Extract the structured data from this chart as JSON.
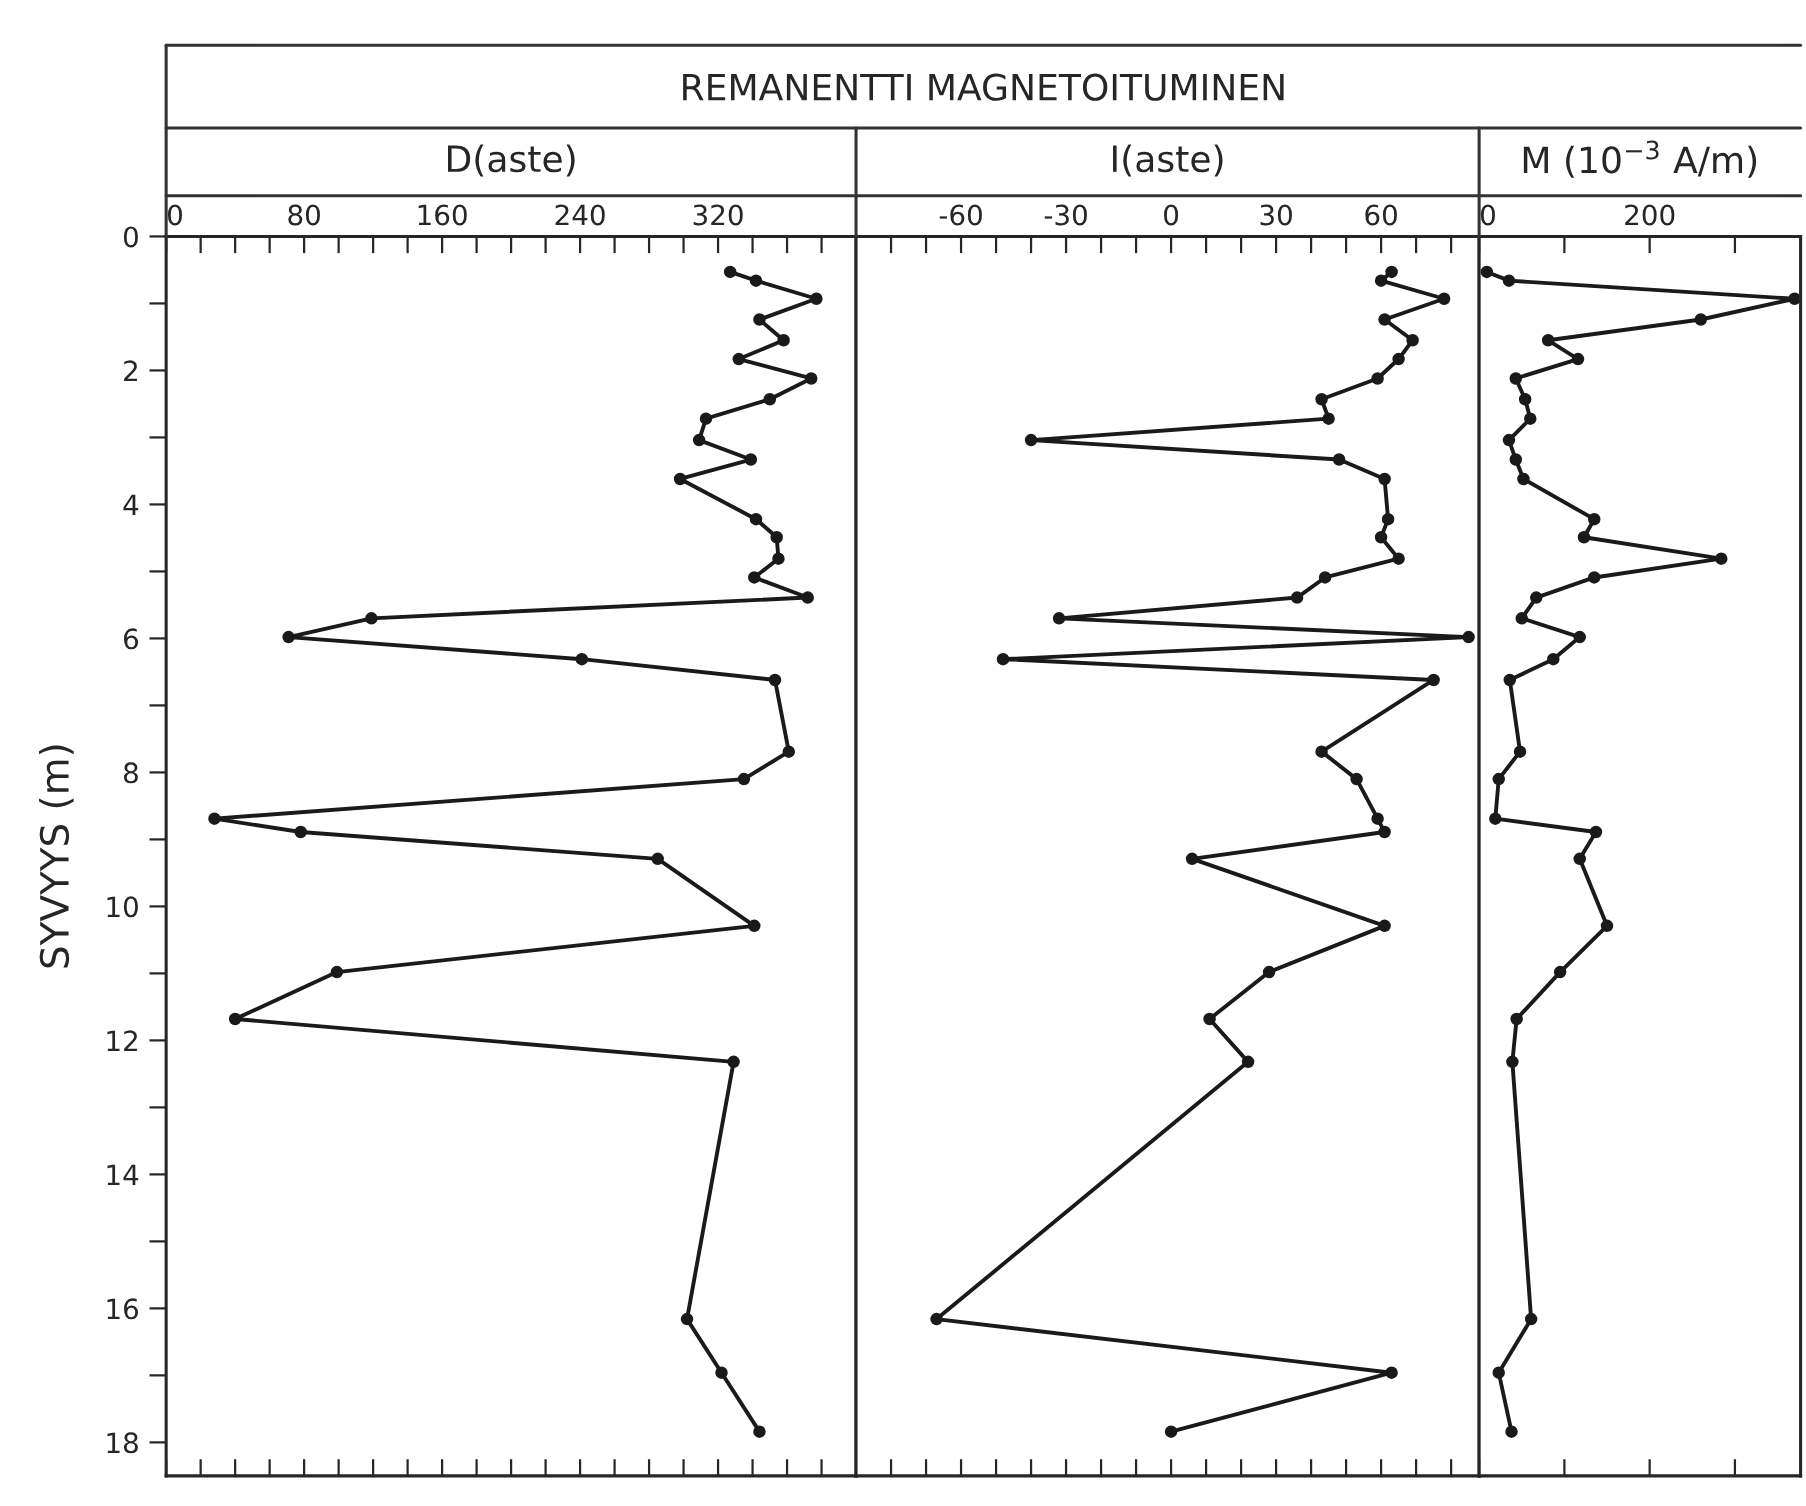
{
  "chart_data": [
    {
      "type": "line",
      "title": "REMANENTTI MAGNETOITUMINEN",
      "xlabel": "D(aste)",
      "ylabel": "SYVYYS (m)",
      "marker": "circle",
      "line_style": "solid",
      "grid": false,
      "xlim": [
        0,
        400
      ],
      "xticks": [
        0,
        {
          "value": 20,
          "label": null
        },
        {
          "value": 40,
          "label": null
        },
        {
          "value": 60,
          "label": null
        },
        80,
        {
          "value": 100,
          "label": null
        },
        {
          "value": 120,
          "label": null
        },
        {
          "value": 140,
          "label": null
        },
        160,
        {
          "value": 180,
          "label": null
        },
        {
          "value": 200,
          "label": null
        },
        {
          "value": 220,
          "label": null
        },
        240,
        {
          "value": 260,
          "label": null
        },
        {
          "value": 280,
          "label": null
        },
        {
          "value": 300,
          "label": null
        },
        320,
        {
          "value": 340,
          "label": null
        },
        {
          "value": 360,
          "label": null
        },
        {
          "value": 380,
          "label": null
        }
      ],
      "ylim": [
        18.5,
        0
      ],
      "yticks": [
        0,
        {
          "value": 1,
          "label": null
        },
        2,
        {
          "value": 3,
          "label": null
        },
        4,
        {
          "value": 5,
          "label": null
        },
        6,
        {
          "value": 7,
          "label": null
        },
        8,
        {
          "value": 9,
          "label": null
        },
        10,
        {
          "value": 11,
          "label": null
        },
        12,
        {
          "value": 13,
          "label": null
        },
        14,
        {
          "value": 15,
          "label": null
        },
        16,
        {
          "value": 17,
          "label": null
        },
        18
      ],
      "series": [
        {
          "color": "#1a1a1a",
          "x": [
            327,
            342,
            377,
            344,
            358,
            332,
            374,
            350,
            313,
            309,
            339,
            298,
            342,
            354,
            355,
            341,
            372,
            119,
            71,
            241,
            353,
            361,
            335,
            28,
            78,
            285,
            341,
            99,
            40,
            329,
            302,
            322,
            344
          ],
          "values": [
            0.53,
            0.66,
            0.93,
            1.24,
            1.55,
            1.83,
            2.12,
            2.43,
            2.72,
            3.04,
            3.33,
            3.62,
            4.22,
            4.49,
            4.81,
            5.09,
            5.39,
            5.7,
            5.98,
            6.31,
            6.62,
            7.69,
            8.1,
            8.69,
            8.89,
            9.29,
            10.29,
            10.98,
            11.68,
            12.32,
            16.16,
            16.96,
            17.84
          ]
        }
      ]
    },
    {
      "type": "line",
      "xlabel": "I(aste)",
      "marker": "circle",
      "line_style": "solid",
      "grid": false,
      "tick_labels": "x",
      "xlim": [
        -90,
        88
      ],
      "xticks": [
        {
          "value": -80,
          "label": null
        },
        {
          "value": -70,
          "label": null
        },
        -60,
        {
          "value": -50,
          "label": null
        },
        {
          "value": -40,
          "label": null
        },
        -30,
        {
          "value": -20,
          "label": null
        },
        {
          "value": -10,
          "label": null
        },
        0,
        {
          "value": 10,
          "label": null
        },
        {
          "value": 20,
          "label": null
        },
        30,
        {
          "value": 40,
          "label": null
        },
        {
          "value": 50,
          "label": null
        },
        60,
        {
          "value": 70,
          "label": null
        },
        {
          "value": 80,
          "label": null
        }
      ],
      "ylim": [
        18.5,
        0
      ],
      "series": [
        {
          "color": "#1a1a1a",
          "x": [
            63,
            60,
            78,
            61,
            69,
            65,
            59,
            43,
            45,
            -40,
            48,
            61,
            62,
            60,
            65,
            44,
            36,
            -32,
            85,
            -48,
            75,
            43,
            53,
            59,
            61,
            6,
            61,
            28,
            11,
            22,
            -67,
            63,
            0
          ],
          "values": [
            0.53,
            0.66,
            0.93,
            1.24,
            1.55,
            1.83,
            2.12,
            2.43,
            2.72,
            3.04,
            3.33,
            3.62,
            4.22,
            4.49,
            4.81,
            5.09,
            5.39,
            5.7,
            5.98,
            6.31,
            6.62,
            7.69,
            8.1,
            8.69,
            8.89,
            9.29,
            10.29,
            10.98,
            11.68,
            12.32,
            16.16,
            16.96,
            17.84
          ]
        }
      ]
    },
    {
      "type": "line",
      "xlabel": "M (10$^{−3}$ A/m)",
      "marker": "circle",
      "line_style": "solid",
      "grid": false,
      "tick_labels": "x",
      "xlim": [
        0,
        377
      ],
      "xticks": [
        0,
        {
          "value": 100,
          "label": null
        },
        200,
        {
          "value": 300,
          "label": null
        }
      ],
      "ylim": [
        18.5,
        0
      ],
      "series": [
        {
          "color": "#1a1a1a",
          "x": [
            9,
            35,
            370,
            260,
            81,
            116,
            43,
            54,
            60,
            35,
            43,
            52,
            135,
            123,
            284,
            135,
            67,
            50,
            118,
            87,
            36,
            48,
            23,
            19,
            137,
            118,
            150,
            95,
            44,
            39,
            61,
            23,
            38
          ],
          "values": [
            0.53,
            0.66,
            0.93,
            1.24,
            1.55,
            1.83,
            2.12,
            2.43,
            2.72,
            3.04,
            3.33,
            3.62,
            4.22,
            4.49,
            4.81,
            5.09,
            5.39,
            5.7,
            5.98,
            6.31,
            6.62,
            7.69,
            8.1,
            8.69,
            8.89,
            9.29,
            10.29,
            10.98,
            11.68,
            12.32,
            16.16,
            16.96,
            17.84
          ]
        }
      ]
    }
  ]
}
